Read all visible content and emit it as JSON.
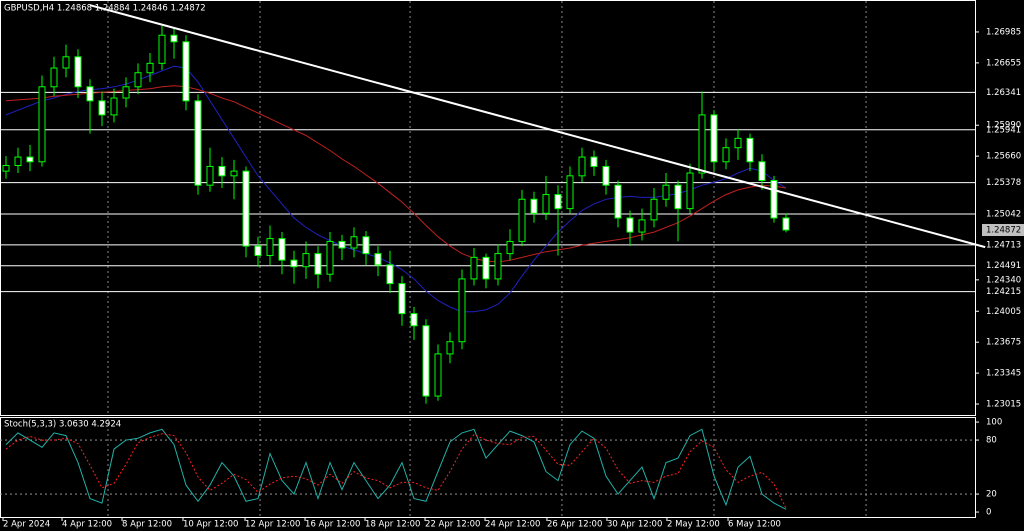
{
  "chart_data": [
    {
      "type": "candlestick",
      "title": "GBPUSD,H4  1.24868 1.24884 1.24846 1.24872",
      "xlim": [
        -0.5,
        80.75
      ],
      "xticks": [
        {
          "value": -0.25,
          "label": "2 Apr 2024"
        },
        {
          "value": 4.67,
          "label": "4 Apr 12:00"
        },
        {
          "value": 9.67,
          "label": "8 Apr 12:00"
        },
        {
          "value": 14.75,
          "label": "10 Apr 12:00"
        },
        {
          "value": 19.92,
          "label": "12 Apr 12:00"
        },
        {
          "value": 24.92,
          "label": "16 Apr 12:00"
        },
        {
          "value": 29.92,
          "label": "18 Apr 12:00"
        },
        {
          "value": 34.92,
          "label": "22 Apr 12:00"
        },
        {
          "value": 39.92,
          "label": "24 Apr 12:00"
        },
        {
          "value": 45.08,
          "label": "26 Apr 12:00"
        },
        {
          "value": 50.08,
          "label": "30 Apr 12:00"
        },
        {
          "value": 55.08,
          "label": "2 May 12:00"
        },
        {
          "value": 60.17,
          "label": "6 May 12:00"
        }
      ],
      "xgrid": [
        8.5,
        21.17,
        33.67,
        46.33,
        59,
        71.67
      ],
      "ylim": [
        1.22898,
        1.27326
      ],
      "yticks": [
        1.26985,
        1.26655,
        {
          "value": 1.2599,
          "label": "1.25990"
        },
        {
          "value": 1.2566,
          "label": "1.25660"
        },
        {
          "value": 1.2434,
          "label": "1.24340"
        },
        1.24005,
        1.23675,
        1.23345,
        1.23015
      ],
      "hlines": [
        1.26341,
        1.25941,
        1.25378,
        1.25042,
        1.24713,
        1.24491,
        1.24215
      ],
      "up_color": "#00ff00",
      "down_fill": "#ffffff",
      "up_fill": "#000000",
      "open": [
        1.255,
        1.2556,
        1.2565,
        1.256,
        1.264,
        1.266,
        1.2672,
        1.264,
        1.2625,
        1.261,
        1.2628,
        1.264,
        1.2655,
        1.2665,
        1.2695,
        1.2688,
        1.2625,
        1.2535,
        1.2555,
        1.2545,
        1.255,
        1.247,
        1.246,
        1.2478,
        1.2455,
        1.2448,
        1.2462,
        1.244,
        1.2475,
        1.2468,
        1.248,
        1.2462,
        1.245,
        1.243,
        1.2398,
        1.2385,
        1.231,
        1.2355,
        1.2368,
        1.2435,
        1.2458,
        1.2435,
        1.2462,
        1.2475,
        1.252,
        1.2505,
        1.2525,
        1.251,
        1.2545,
        1.2565,
        1.2555,
        1.2535,
        1.25,
        1.2485,
        1.2498,
        1.252,
        1.2535,
        1.251,
        1.2548,
        1.261,
        1.256,
        1.2575,
        1.2585,
        1.256,
        1.254,
        1.25
      ],
      "high": [
        1.2566,
        1.2575,
        1.2578,
        1.2652,
        1.2672,
        1.2685,
        1.268,
        1.2648,
        1.2635,
        1.2638,
        1.265,
        1.2665,
        1.2676,
        1.2705,
        1.2702,
        1.2695,
        1.2632,
        1.2575,
        1.2565,
        1.2562,
        1.2555,
        1.248,
        1.2492,
        1.2485,
        1.2465,
        1.2475,
        1.247,
        1.2485,
        1.2482,
        1.249,
        1.2486,
        1.247,
        1.2465,
        1.2438,
        1.2405,
        1.2392,
        1.2365,
        1.2378,
        1.2445,
        1.2468,
        1.2462,
        1.2472,
        1.2488,
        1.253,
        1.2528,
        1.2545,
        1.2535,
        1.2555,
        1.2575,
        1.2572,
        1.2562,
        1.254,
        1.2508,
        1.251,
        1.2532,
        1.2548,
        1.254,
        1.2558,
        1.2635,
        1.2615,
        1.2585,
        1.2595,
        1.259,
        1.2568,
        1.2545,
        1.2505
      ],
      "low": [
        1.2542,
        1.2548,
        1.255,
        1.2555,
        1.263,
        1.265,
        1.2628,
        1.259,
        1.2598,
        1.2602,
        1.2618,
        1.2632,
        1.2645,
        1.2658,
        1.267,
        1.2615,
        1.2525,
        1.2528,
        1.2532,
        1.252,
        1.2458,
        1.2448,
        1.245,
        1.244,
        1.243,
        1.2435,
        1.2425,
        1.2432,
        1.2455,
        1.2458,
        1.245,
        1.2438,
        1.242,
        1.2385,
        1.237,
        1.2302,
        1.2305,
        1.2345,
        1.236,
        1.2428,
        1.2425,
        1.2428,
        1.2455,
        1.247,
        1.2495,
        1.2498,
        1.246,
        1.2505,
        1.2538,
        1.2545,
        1.2525,
        1.249,
        1.247,
        1.2476,
        1.249,
        1.2512,
        1.2475,
        1.2505,
        1.2542,
        1.255,
        1.2552,
        1.2562,
        1.255,
        1.253,
        1.2495,
        1.24846
      ],
      "close": [
        1.2556,
        1.2565,
        1.256,
        1.264,
        1.266,
        1.2672,
        1.264,
        1.2625,
        1.261,
        1.2628,
        1.264,
        1.2655,
        1.2665,
        1.2695,
        1.2688,
        1.2625,
        1.2535,
        1.2555,
        1.2545,
        1.255,
        1.247,
        1.246,
        1.2478,
        1.2455,
        1.2448,
        1.2462,
        1.244,
        1.2475,
        1.2468,
        1.248,
        1.2462,
        1.245,
        1.243,
        1.2398,
        1.2385,
        1.231,
        1.2355,
        1.2368,
        1.2435,
        1.2458,
        1.2435,
        1.2462,
        1.2475,
        1.252,
        1.2505,
        1.2525,
        1.251,
        1.2545,
        1.2565,
        1.2555,
        1.2535,
        1.25,
        1.2485,
        1.2498,
        1.252,
        1.2535,
        1.251,
        1.2548,
        1.261,
        1.256,
        1.2575,
        1.2585,
        1.256,
        1.254,
        1.25,
        1.24872
      ],
      "ma": [
        {
          "color": "#2020c0",
          "values": [
            1.261,
            1.2615,
            1.262,
            1.2625,
            1.2628,
            1.2632,
            1.2635,
            1.2637,
            1.2638,
            1.264,
            1.2643,
            1.2647,
            1.2652,
            1.2657,
            1.2662,
            1.266,
            1.2645,
            1.2625,
            1.2605,
            1.2585,
            1.2565,
            1.2545,
            1.253,
            1.2515,
            1.25,
            1.249,
            1.2482,
            1.2476,
            1.247,
            1.2466,
            1.2462,
            1.2458,
            1.2452,
            1.2445,
            1.2435,
            1.2422,
            1.2412,
            1.2405,
            1.24,
            1.24,
            1.2402,
            1.2408,
            1.242,
            1.2438,
            1.2455,
            1.247,
            1.2485,
            1.2497,
            1.2508,
            1.2515,
            1.252,
            1.2522,
            1.2523,
            1.2522,
            1.2522,
            1.2524,
            1.2526,
            1.253,
            1.2535,
            1.2538,
            1.2542,
            1.2548,
            1.2553,
            1.255,
            1.254,
            1.2532
          ]
        },
        {
          "color": "#c02020",
          "values": [
            1.2625,
            1.2626,
            1.2627,
            1.2628,
            1.263,
            1.2631,
            1.2632,
            1.2633,
            1.2634,
            1.2635,
            1.2636,
            1.2637,
            1.2638,
            1.264,
            1.2641,
            1.264,
            1.2637,
            1.2633,
            1.2628,
            1.2624,
            1.2618,
            1.2612,
            1.2606,
            1.26,
            1.2594,
            1.2588,
            1.258,
            1.2572,
            1.2563,
            1.2555,
            1.2546,
            1.2537,
            1.2527,
            1.2517,
            1.2505,
            1.2492,
            1.248,
            1.247,
            1.2462,
            1.2457,
            1.2454,
            1.2453,
            1.2455,
            1.2458,
            1.2461,
            1.2464,
            1.2466,
            1.2468,
            1.2471,
            1.2473,
            1.2475,
            1.2477,
            1.2479,
            1.2482,
            1.2485,
            1.249,
            1.2495,
            1.2502,
            1.251,
            1.2518,
            1.2525,
            1.253,
            1.2533,
            1.2535,
            1.2534,
            1.2532
          ]
        }
      ],
      "trendline": {
        "color": "#ffffff",
        "x": [
          7,
          81.6
        ],
        "y": [
          1.2727,
          1.2469
        ]
      }
    },
    {
      "type": "line",
      "title": "Stoch(5,3,3) 3.0630 4.2924",
      "ylim": [
        -5.5,
        104.5
      ],
      "yticks": [
        100,
        80,
        20,
        0
      ],
      "levels": [
        80,
        20
      ],
      "series": [
        {
          "color": "#20b2aa",
          "dash": false,
          "values": [
            75,
            88,
            80,
            72,
            88,
            85,
            55,
            15,
            10,
            70,
            80,
            82,
            88,
            92,
            75,
            30,
            12,
            30,
            55,
            40,
            12,
            15,
            65,
            35,
            20,
            55,
            15,
            55,
            25,
            55,
            35,
            15,
            30,
            55,
            15,
            12,
            45,
            78,
            88,
            92,
            60,
            75,
            90,
            85,
            78,
            45,
            35,
            75,
            90,
            82,
            40,
            20,
            35,
            50,
            15,
            55,
            60,
            85,
            92,
            40,
            8,
            50,
            62,
            20,
            10,
            3.063
          ]
        },
        {
          "color": "#ff2020",
          "dash": true,
          "values": [
            70,
            80,
            84,
            80,
            80,
            82,
            76,
            52,
            27,
            32,
            53,
            77,
            83,
            87,
            85,
            66,
            39,
            24,
            32,
            42,
            36,
            22,
            31,
            38,
            40,
            37,
            30,
            42,
            32,
            45,
            38,
            35,
            27,
            33,
            33,
            27,
            24,
            45,
            70,
            86,
            80,
            76,
            75,
            83,
            84,
            69,
            53,
            52,
            67,
            82,
            71,
            47,
            32,
            35,
            33,
            40,
            43,
            67,
            79,
            72,
            47,
            33,
            40,
            44,
            31,
            4.2924
          ]
        }
      ]
    }
  ]
}
